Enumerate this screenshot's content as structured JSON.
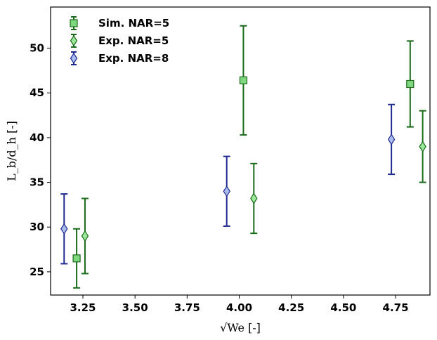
{
  "chart_data": {
    "type": "scatter",
    "xlabel": "√We [-]",
    "ylabel": "L_b/d_h [-]",
    "xlim": [
      3.095,
      4.915
    ],
    "ylim": [
      22.4,
      54.6
    ],
    "xticks": [
      "3.25",
      "3.50",
      "3.75",
      "4.00",
      "4.25",
      "4.50",
      "4.75"
    ],
    "yticks": [
      "25",
      "30",
      "35",
      "40",
      "45",
      "50"
    ],
    "grid": false,
    "legend_position": "top-left",
    "series": [
      {
        "name": "Sim. NAR=5",
        "marker": "square",
        "fill": "#7fd87f",
        "stroke": "#1a6b1a",
        "points": [
          {
            "x": 3.22,
            "y": 26.5,
            "err": 3.3
          },
          {
            "x": 4.02,
            "y": 46.4,
            "err": 6.1
          },
          {
            "x": 4.82,
            "y": 46.0,
            "err": 4.8
          }
        ]
      },
      {
        "name": "Exp. NAR=5",
        "marker": "diamond",
        "fill": "#9be89b",
        "stroke": "#1a6b1a",
        "points": [
          {
            "x": 3.26,
            "y": 29.0,
            "err": 4.2
          },
          {
            "x": 4.07,
            "y": 33.2,
            "err": 3.9
          },
          {
            "x": 4.88,
            "y": 39.0,
            "err": 4.0
          }
        ]
      },
      {
        "name": "Exp. NAR=8",
        "marker": "diamond",
        "fill": "#aabbee",
        "stroke": "#1f2a8f",
        "points": [
          {
            "x": 3.16,
            "y": 29.8,
            "err": 3.9
          },
          {
            "x": 3.94,
            "y": 34.0,
            "err": 3.9
          },
          {
            "x": 4.73,
            "y": 39.8,
            "err": 3.9
          }
        ]
      }
    ]
  }
}
